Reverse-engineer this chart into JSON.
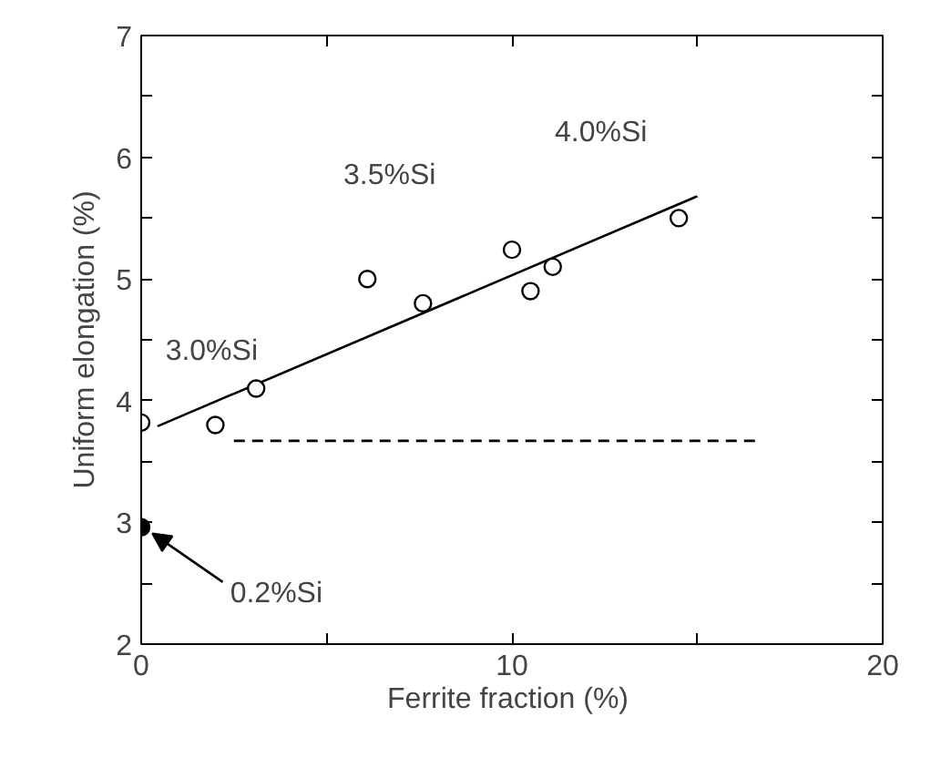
{
  "chart_data": {
    "type": "scatter",
    "xlabel": "Ferrite  fraction (%)",
    "ylabel": "Uniform elongation (%)",
    "xlim": [
      0,
      20
    ],
    "ylim": [
      2,
      7
    ],
    "xticks": [
      0,
      {
        "value": 5,
        "label": null
      },
      10,
      {
        "value": 15,
        "label": null
      },
      20
    ],
    "yticks": [
      2,
      {
        "value": 2.5,
        "label": null
      },
      3,
      {
        "value": 3.5,
        "label": null
      },
      4,
      {
        "value": 4.5,
        "label": null
      },
      5,
      {
        "value": 5.5,
        "label": null
      },
      6,
      {
        "value": 6.5,
        "label": null
      },
      7
    ],
    "grid": false,
    "series": [
      {
        "type": "line",
        "color": "#000000",
        "x": [
          0.44,
          15
        ],
        "values": [
          3.79,
          5.68
        ]
      },
      {
        "type": "line",
        "color": "#000000",
        "line_style": "dashed",
        "x": [
          2.5,
          16.7
        ],
        "values": [
          3.67,
          3.67
        ]
      },
      {
        "marker": "circle",
        "color": "#ffffff",
        "x": [
          0,
          2.0,
          3.1,
          6.1,
          7.6,
          10.0,
          10.5,
          11.1,
          14.5
        ],
        "values": [
          3.82,
          3.8,
          4.1,
          5.0,
          4.8,
          5.24,
          4.9,
          5.1,
          5.5
        ]
      },
      {
        "marker": "circle",
        "color": "#000000",
        "x": [
          0
        ],
        "values": [
          2.96
        ]
      }
    ],
    "annotations": [
      "3.0%Si",
      "3.5%Si",
      "4.0%Si",
      {
        "text": "0.2%Si",
        "x": 0,
        "y": 2.96
      }
    ]
  }
}
